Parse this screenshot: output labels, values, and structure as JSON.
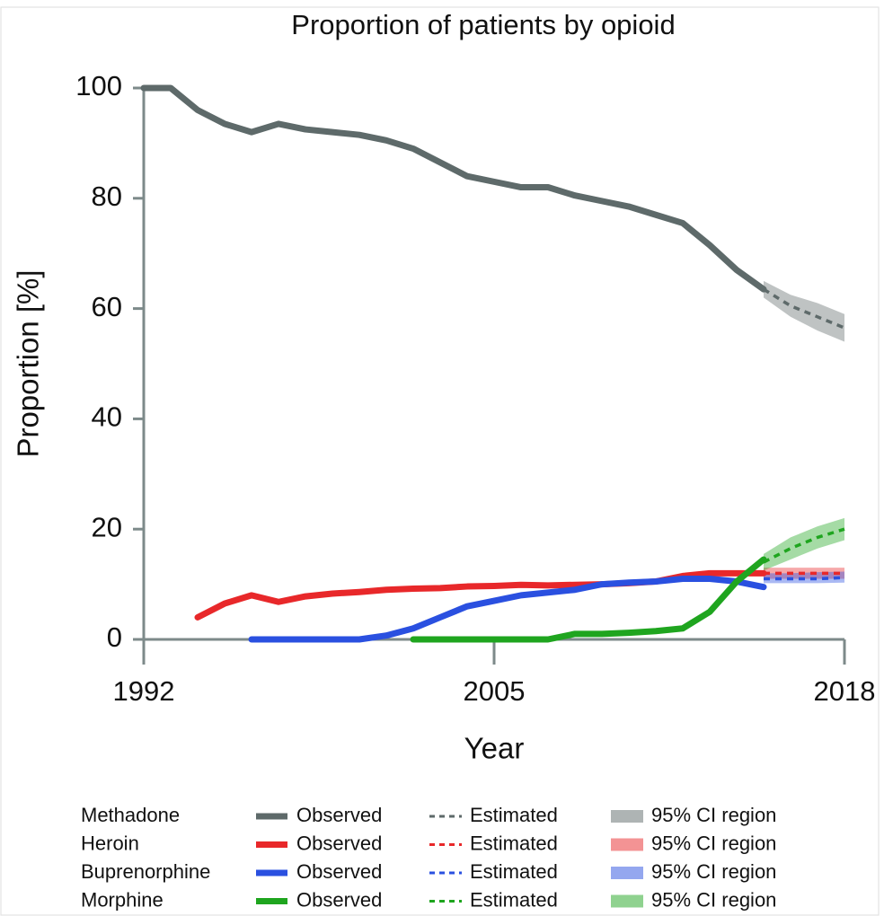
{
  "chart_data": {
    "type": "line",
    "title": "Proportion of patients by opioid",
    "xlabel": "Year",
    "ylabel": "Proportion [%]",
    "xlim": [
      1992,
      2018
    ],
    "xticks": [
      1992,
      2005,
      2018
    ],
    "ylim": [
      0,
      100
    ],
    "yticks": [
      0,
      20,
      40,
      60,
      80,
      100
    ],
    "legend_columns": [
      "Observed",
      "Estimated",
      "95% CI region"
    ],
    "series": [
      {
        "name": "Methadone",
        "color": "#5e6a6a",
        "x": [
          1992,
          1993,
          1994,
          1995,
          1996,
          1997,
          1998,
          1999,
          2000,
          2001,
          2002,
          2003,
          2004,
          2005,
          2006,
          2007,
          2008,
          2009,
          2010,
          2011,
          2012,
          2013,
          2014,
          2015
        ],
        "values": [
          100,
          100,
          96,
          93.5,
          92,
          93.5,
          92.5,
          92,
          91.5,
          90.5,
          89,
          86.5,
          84,
          83,
          82,
          82,
          80.5,
          79.5,
          78.5,
          77,
          75.5,
          71.5,
          67,
          63.5
        ],
        "forecast_x": [
          2015,
          2016,
          2017,
          2018
        ],
        "forecast_values": [
          63.5,
          60.5,
          58.5,
          56.5
        ],
        "ci_lower": [
          62,
          58.5,
          56,
          54
        ],
        "ci_upper": [
          65,
          62.5,
          61,
          59
        ]
      },
      {
        "name": "Heroin",
        "color": "#e8282a",
        "x": [
          1994,
          1995,
          1996,
          1997,
          1998,
          1999,
          2000,
          2001,
          2002,
          2003,
          2004,
          2005,
          2006,
          2007,
          2008,
          2009,
          2010,
          2011,
          2012,
          2013,
          2014,
          2015
        ],
        "values": [
          4,
          6.5,
          8,
          6.8,
          7.8,
          8.3,
          8.6,
          9,
          9.2,
          9.3,
          9.6,
          9.7,
          9.9,
          9.8,
          9.9,
          10,
          10.2,
          10.5,
          11.5,
          12,
          12,
          12
        ],
        "forecast_x": [
          2015,
          2016,
          2017,
          2018
        ],
        "forecast_values": [
          12,
          12,
          12,
          12
        ],
        "ci_lower": [
          11,
          11,
          11,
          11
        ],
        "ci_upper": [
          13,
          13,
          13,
          13
        ]
      },
      {
        "name": "Buprenorphine",
        "color": "#2a50e0",
        "x": [
          1996,
          1997,
          1998,
          1999,
          2000,
          2001,
          2002,
          2003,
          2004,
          2005,
          2006,
          2007,
          2008,
          2009,
          2010,
          2011,
          2012,
          2013,
          2014,
          2015
        ],
        "values": [
          0,
          0,
          0,
          0,
          0,
          0.7,
          2,
          4,
          6,
          7,
          8,
          8.5,
          9,
          10,
          10.3,
          10.5,
          11,
          11,
          10.5,
          9.5
        ],
        "forecast_x": [
          2015,
          2016,
          2017,
          2018
        ],
        "forecast_values": [
          11,
          11,
          11,
          11.2
        ],
        "ci_lower": [
          10.2,
          10.2,
          10.2,
          10.3
        ],
        "ci_upper": [
          12,
          12,
          12.2,
          12.3
        ]
      },
      {
        "name": "Morphine",
        "color": "#1fa51f",
        "x": [
          2002,
          2003,
          2004,
          2005,
          2006,
          2007,
          2008,
          2009,
          2010,
          2011,
          2012,
          2013,
          2014,
          2015
        ],
        "values": [
          0,
          0,
          0,
          0,
          0,
          0,
          1,
          1,
          1.2,
          1.5,
          2,
          5,
          10.5,
          14.5
        ],
        "forecast_x": [
          2015,
          2016,
          2017,
          2018
        ],
        "forecast_values": [
          14,
          16.5,
          18.5,
          20
        ],
        "ci_lower": [
          12.5,
          14.5,
          16.5,
          18
        ],
        "ci_upper": [
          15.5,
          18.5,
          20.5,
          22
        ]
      }
    ]
  }
}
